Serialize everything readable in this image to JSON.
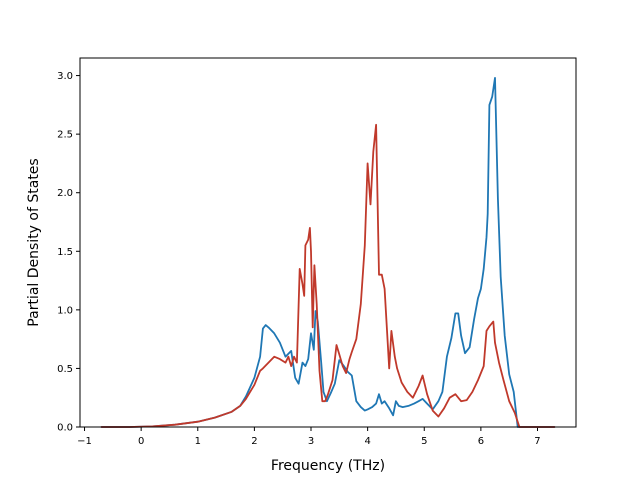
{
  "chart_data": {
    "type": "line",
    "title": "",
    "xlabel": "Frequency (THz)",
    "ylabel": "Partial Density of States",
    "xlim": [
      -1.08,
      7.68
    ],
    "ylim": [
      0,
      3.15
    ],
    "xticks": [
      -1,
      0,
      1,
      2,
      3,
      4,
      5,
      6,
      7
    ],
    "yticks": [
      0.0,
      0.5,
      1.0,
      1.5,
      2.0,
      2.5,
      3.0
    ],
    "grid": false,
    "series": [
      {
        "color": "#1f77b4",
        "x": [
          -0.7,
          -0.2,
          0.2,
          0.6,
          1.0,
          1.3,
          1.6,
          1.75,
          1.85,
          2.0,
          2.1,
          2.15,
          2.2,
          2.25,
          2.35,
          2.45,
          2.55,
          2.65,
          2.72,
          2.78,
          2.85,
          2.9,
          2.95,
          3.0,
          3.05,
          3.08,
          3.12,
          3.18,
          3.22,
          3.28,
          3.35,
          3.42,
          3.5,
          3.58,
          3.65,
          3.72,
          3.8,
          3.88,
          3.95,
          4.0,
          4.08,
          4.15,
          4.2,
          4.25,
          4.3,
          4.38,
          4.45,
          4.5,
          4.55,
          4.62,
          4.72,
          4.82,
          4.9,
          4.97,
          5.05,
          5.15,
          5.25,
          5.32,
          5.4,
          5.48,
          5.55,
          5.6,
          5.65,
          5.72,
          5.8,
          5.88,
          5.95,
          6.0,
          6.05,
          6.1,
          6.12,
          6.15,
          6.2,
          6.25,
          6.3,
          6.35,
          6.42,
          6.5,
          6.58,
          6.65,
          6.8,
          7.3
        ],
        "y": [
          0.0,
          0.0,
          0.005,
          0.02,
          0.045,
          0.08,
          0.13,
          0.18,
          0.26,
          0.42,
          0.6,
          0.84,
          0.87,
          0.85,
          0.8,
          0.72,
          0.6,
          0.65,
          0.42,
          0.37,
          0.55,
          0.52,
          0.58,
          0.8,
          0.66,
          0.99,
          0.9,
          0.55,
          0.3,
          0.22,
          0.29,
          0.37,
          0.57,
          0.52,
          0.47,
          0.44,
          0.22,
          0.17,
          0.14,
          0.15,
          0.17,
          0.2,
          0.28,
          0.2,
          0.22,
          0.16,
          0.1,
          0.22,
          0.18,
          0.17,
          0.18,
          0.2,
          0.22,
          0.24,
          0.2,
          0.15,
          0.22,
          0.3,
          0.6,
          0.76,
          0.97,
          0.97,
          0.78,
          0.63,
          0.68,
          0.92,
          1.1,
          1.18,
          1.35,
          1.62,
          1.82,
          2.75,
          2.82,
          2.98,
          1.95,
          1.28,
          0.78,
          0.45,
          0.3,
          0.0,
          0.0,
          0.0
        ]
      },
      {
        "color": "#c0392b",
        "x": [
          -0.7,
          -0.2,
          0.2,
          0.6,
          1.0,
          1.3,
          1.6,
          1.75,
          1.85,
          2.0,
          2.1,
          2.15,
          2.25,
          2.35,
          2.45,
          2.55,
          2.6,
          2.65,
          2.7,
          2.75,
          2.8,
          2.85,
          2.88,
          2.9,
          2.95,
          2.98,
          3.0,
          3.03,
          3.06,
          3.1,
          3.15,
          3.2,
          3.25,
          3.3,
          3.38,
          3.45,
          3.5,
          3.56,
          3.62,
          3.68,
          3.72,
          3.8,
          3.88,
          3.95,
          4.0,
          4.05,
          4.1,
          4.15,
          4.2,
          4.25,
          4.3,
          4.38,
          4.42,
          4.48,
          4.52,
          4.6,
          4.7,
          4.8,
          4.9,
          4.97,
          5.05,
          5.15,
          5.25,
          5.35,
          5.45,
          5.55,
          5.65,
          5.75,
          5.85,
          5.95,
          6.05,
          6.1,
          6.15,
          6.22,
          6.25,
          6.32,
          6.4,
          6.5,
          6.6,
          6.68,
          6.8,
          7.3
        ],
        "y": [
          0.0,
          0.0,
          0.005,
          0.02,
          0.045,
          0.08,
          0.13,
          0.18,
          0.24,
          0.36,
          0.48,
          0.5,
          0.55,
          0.6,
          0.58,
          0.55,
          0.6,
          0.52,
          0.6,
          0.55,
          1.35,
          1.22,
          1.12,
          1.55,
          1.6,
          1.7,
          1.5,
          0.85,
          1.38,
          1.05,
          0.48,
          0.22,
          0.22,
          0.28,
          0.4,
          0.7,
          0.62,
          0.52,
          0.46,
          0.58,
          0.64,
          0.75,
          1.05,
          1.55,
          2.25,
          1.9,
          2.35,
          2.58,
          1.3,
          1.3,
          1.18,
          0.5,
          0.82,
          0.6,
          0.5,
          0.38,
          0.3,
          0.25,
          0.35,
          0.44,
          0.28,
          0.14,
          0.09,
          0.16,
          0.25,
          0.28,
          0.22,
          0.23,
          0.3,
          0.4,
          0.52,
          0.82,
          0.86,
          0.9,
          0.72,
          0.55,
          0.4,
          0.22,
          0.12,
          0.0,
          0.0,
          0.0
        ]
      }
    ]
  }
}
